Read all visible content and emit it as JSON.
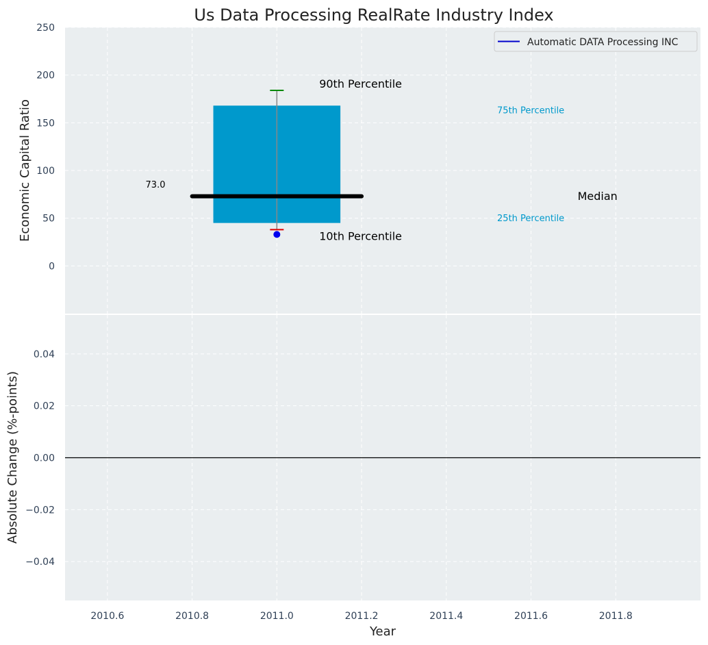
{
  "chart_data": [
    {
      "type": "bar",
      "panel": "top",
      "title": "Us Data Processing RealRate Industry Index",
      "ylabel": "Economic Capital Ratio",
      "xlim": [
        2010.5,
        2012.0
      ],
      "ylim": [
        -50,
        250
      ],
      "yticks": [
        0,
        50,
        100,
        150,
        200,
        250
      ],
      "grid": true,
      "legend": {
        "placement": "top-right",
        "entries": [
          {
            "label": "Automatic DATA Processing INC",
            "color": "#0000cc"
          }
        ]
      },
      "box": {
        "x": 2011.0,
        "box_left": 2010.85,
        "box_right": 2011.15,
        "p25": 45,
        "p75": 168,
        "p10": 38,
        "p90": 184,
        "median": 73.0,
        "median_left": 2010.8,
        "median_right": 2011.2
      },
      "company_point": {
        "x": 2011.0,
        "y": 33,
        "color": "#0000ee"
      },
      "annotations": {
        "median_value": {
          "text": "73.0",
          "x": 2010.69,
          "y": 82
        },
        "p90_label": {
          "text": "90th Percentile",
          "x": 2011.1,
          "y": 187
        },
        "p10_label": {
          "text": "10th Percentile",
          "x": 2011.1,
          "y": 27
        },
        "p75_label": {
          "text": "75th Percentile",
          "x": 2011.52,
          "y": 160
        },
        "p25_label": {
          "text": "25th Percentile",
          "x": 2011.52,
          "y": 47
        },
        "median_label": {
          "text": "Median",
          "x": 2011.71,
          "y": 69
        }
      },
      "colors": {
        "box": "#0099cc",
        "median": "#000000",
        "whisker": "#888888",
        "p90_cap": "#008800",
        "p10_cap": "#dd0000",
        "small_label": "#0099cc"
      }
    },
    {
      "type": "line",
      "panel": "bottom",
      "xlabel": "Year",
      "ylabel": "Absolute Change (%-points)",
      "xlim": [
        2010.5,
        2012.0
      ],
      "ylim": [
        -0.055,
        0.055
      ],
      "xticks": [
        2010.6,
        2010.8,
        2011.0,
        2011.2,
        2011.4,
        2011.6,
        2011.8
      ],
      "xtick_labels": [
        "2010.6",
        "2010.8",
        "2011.0",
        "2011.2",
        "2011.4",
        "2011.6",
        "2011.8"
      ],
      "yticks": [
        0.04,
        0.02,
        0.0,
        -0.02,
        -0.04
      ],
      "ytick_labels": [
        "0.04",
        "0.02",
        "0.00",
        "−0.02",
        "−0.04"
      ],
      "zero_line": 0.0,
      "grid": true
    }
  ]
}
